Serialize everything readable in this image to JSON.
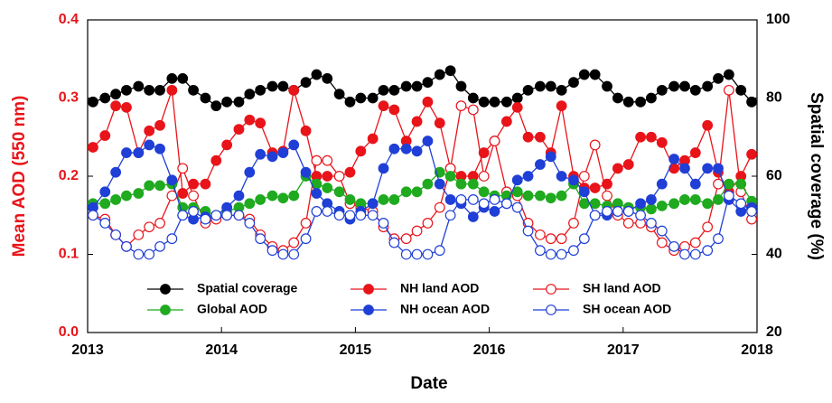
{
  "chart_data": {
    "type": "line",
    "x_label": "Date",
    "y_label": "Mean AOD (550 nm)",
    "y2_label": "Spatial coverage (%)",
    "xlim": [
      2013,
      2018
    ],
    "xticks": [
      2013,
      2014,
      2015,
      2016,
      2017,
      2018
    ],
    "ylim": [
      0,
      0.4
    ],
    "yticks": [
      {
        "value": 0,
        "label": "0.0"
      },
      0.1,
      0.2,
      0.3,
      0.4
    ],
    "y2lim": [
      20,
      100
    ],
    "y2ticks": [
      20,
      40,
      60,
      80,
      100
    ],
    "x": [
      2013.04,
      2013.13,
      2013.21,
      2013.29,
      2013.38,
      2013.46,
      2013.54,
      2013.63,
      2013.71,
      2013.79,
      2013.88,
      2013.96,
      2014.04,
      2014.13,
      2014.21,
      2014.29,
      2014.38,
      2014.46,
      2014.54,
      2014.63,
      2014.71,
      2014.79,
      2014.88,
      2014.96,
      2015.04,
      2015.13,
      2015.21,
      2015.29,
      2015.38,
      2015.46,
      2015.54,
      2015.63,
      2015.71,
      2015.79,
      2015.88,
      2015.96,
      2016.04,
      2016.13,
      2016.21,
      2016.29,
      2016.38,
      2016.46,
      2016.54,
      2016.63,
      2016.71,
      2016.79,
      2016.88,
      2016.96,
      2017.04,
      2017.13,
      2017.21,
      2017.29,
      2017.38,
      2017.46,
      2017.54,
      2017.63,
      2017.71,
      2017.79,
      2017.88,
      2017.96
    ],
    "series": [
      {
        "name": "Spatial coverage",
        "color": "#000000",
        "marker_fill": true,
        "axis": "y2",
        "values": [
          79,
          80,
          81,
          82,
          83,
          82,
          82,
          85,
          85,
          82,
          80,
          78,
          79,
          79,
          81,
          82,
          83,
          83,
          82,
          84,
          86,
          85,
          81,
          79,
          80,
          80,
          82,
          82,
          83,
          83,
          84,
          86,
          87,
          83,
          80,
          79,
          79,
          79,
          80,
          82,
          83,
          83,
          82,
          84,
          86,
          86,
          83,
          80,
          79,
          79,
          80,
          82,
          83,
          83,
          82,
          83,
          85,
          86,
          82,
          79
        ]
      },
      {
        "name": "NH land AOD",
        "color": "#e8141a",
        "marker_fill": true,
        "values": [
          0.237,
          0.252,
          0.29,
          0.288,
          0.23,
          0.258,
          0.265,
          0.31,
          0.178,
          0.19,
          0.19,
          0.22,
          0.24,
          0.26,
          0.272,
          0.268,
          0.23,
          0.232,
          0.31,
          0.258,
          0.2,
          0.2,
          0.2,
          0.205,
          0.232,
          0.248,
          0.29,
          0.285,
          0.245,
          0.27,
          0.295,
          0.268,
          0.21,
          0.2,
          0.2,
          0.23,
          0.245,
          0.27,
          0.288,
          0.25,
          0.25,
          0.23,
          0.29,
          0.2,
          0.185,
          0.185,
          0.19,
          0.21,
          0.215,
          0.25,
          0.25,
          0.243,
          0.21,
          0.22,
          0.23,
          0.265,
          0.205,
          0.18,
          0.2,
          0.228
        ]
      },
      {
        "name": "SH land AOD",
        "color": "#e8141a",
        "marker_fill": false,
        "values": [
          0.15,
          0.145,
          0.125,
          0.11,
          0.125,
          0.135,
          0.14,
          0.175,
          0.21,
          0.175,
          0.14,
          0.145,
          0.15,
          0.15,
          0.145,
          0.125,
          0.11,
          0.105,
          0.115,
          0.14,
          0.22,
          0.22,
          0.2,
          0.165,
          0.16,
          0.155,
          0.135,
          0.12,
          0.12,
          0.13,
          0.14,
          0.16,
          0.21,
          0.29,
          0.285,
          0.2,
          0.245,
          0.18,
          0.175,
          0.14,
          0.125,
          0.12,
          0.12,
          0.14,
          0.2,
          0.24,
          0.175,
          0.15,
          0.14,
          0.14,
          0.135,
          0.115,
          0.105,
          0.11,
          0.115,
          0.135,
          0.19,
          0.31,
          0.18,
          0.145
        ]
      },
      {
        "name": "Global AOD",
        "color": "#1faa1f",
        "marker_fill": true,
        "values": [
          0.165,
          0.165,
          0.17,
          0.175,
          0.178,
          0.188,
          0.188,
          0.19,
          0.16,
          0.16,
          0.155,
          0.15,
          0.155,
          0.16,
          0.165,
          0.17,
          0.175,
          0.172,
          0.175,
          0.2,
          0.19,
          0.185,
          0.18,
          0.17,
          0.165,
          0.165,
          0.17,
          0.17,
          0.18,
          0.18,
          0.19,
          0.205,
          0.2,
          0.19,
          0.19,
          0.18,
          0.175,
          0.175,
          0.18,
          0.175,
          0.175,
          0.172,
          0.175,
          0.19,
          0.165,
          0.165,
          0.162,
          0.165,
          0.16,
          0.16,
          0.158,
          0.162,
          0.165,
          0.17,
          0.17,
          0.165,
          0.17,
          0.19,
          0.19,
          0.168
        ]
      },
      {
        "name": "NH ocean AOD",
        "color": "#1f3fd6",
        "marker_fill": true,
        "values": [
          0.16,
          0.18,
          0.205,
          0.23,
          0.23,
          0.24,
          0.235,
          0.195,
          0.15,
          0.145,
          0.148,
          0.15,
          0.16,
          0.175,
          0.205,
          0.228,
          0.225,
          0.23,
          0.24,
          0.205,
          0.178,
          0.165,
          0.155,
          0.145,
          0.155,
          0.165,
          0.21,
          0.235,
          0.235,
          0.232,
          0.245,
          0.19,
          0.17,
          0.165,
          0.148,
          0.16,
          0.155,
          0.165,
          0.195,
          0.2,
          0.215,
          0.225,
          0.2,
          0.195,
          0.18,
          0.15,
          0.15,
          0.155,
          0.155,
          0.165,
          0.17,
          0.19,
          0.222,
          0.21,
          0.19,
          0.21,
          0.21,
          0.17,
          0.155,
          0.16
        ]
      },
      {
        "name": "SH ocean AOD",
        "color": "#1f3fd6",
        "marker_fill": false,
        "values": [
          0.15,
          0.14,
          0.125,
          0.11,
          0.1,
          0.1,
          0.11,
          0.12,
          0.15,
          0.155,
          0.145,
          0.15,
          0.15,
          0.15,
          0.14,
          0.12,
          0.105,
          0.1,
          0.1,
          0.12,
          0.155,
          0.155,
          0.15,
          0.15,
          0.15,
          0.15,
          0.14,
          0.115,
          0.1,
          0.1,
          0.1,
          0.105,
          0.15,
          0.17,
          0.17,
          0.165,
          0.17,
          0.165,
          0.16,
          0.13,
          0.105,
          0.1,
          0.1,
          0.105,
          0.12,
          0.15,
          0.155,
          0.155,
          0.155,
          0.15,
          0.14,
          0.13,
          0.11,
          0.1,
          0.1,
          0.105,
          0.12,
          0.175,
          0.165,
          0.155
        ]
      }
    ]
  }
}
